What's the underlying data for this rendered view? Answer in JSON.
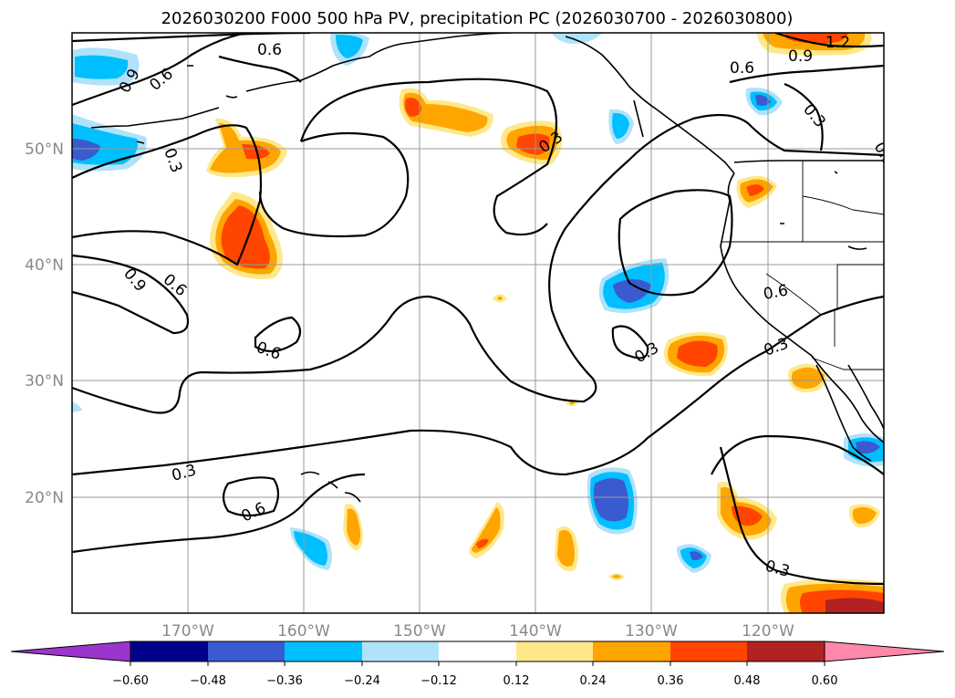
{
  "title": "2026030200 F000 500 hPa PV, precipitation PC (2026030700 - 2026030800)",
  "lat_labels": [
    "50°N",
    "40°N",
    "30°N",
    "20°N"
  ],
  "lon_labels": [
    "170°W",
    "160°W",
    "150°W",
    "140°W",
    "130°W",
    "120°W"
  ],
  "contour_labels": [
    "0.6",
    "0.9",
    "0.6",
    "0.3",
    "0.9",
    "0.6",
    "0.6",
    "0.3",
    "0.6",
    "0.3",
    "0.3",
    "0.6",
    "0.3",
    "0.3",
    "0.9",
    "1.2",
    "0.6",
    "0.3",
    "0.3"
  ],
  "colorbar": {
    "ticks": [
      "−0.60",
      "−0.48",
      "−0.36",
      "−0.24",
      "−0.12",
      "0.12",
      "0.24",
      "0.36",
      "0.48",
      "0.60"
    ],
    "colors": [
      "#9b35cc",
      "#00008b",
      "#3a5bcf",
      "#00bfff",
      "#b0e2fa",
      "#ffffff",
      "#ffe88a",
      "#ffa500",
      "#ff4500",
      "#b22222",
      "#ff88aa"
    ]
  },
  "palette": {
    "neg_light": "#b0e2fa",
    "neg_mid": "#00bfff",
    "neg_dark": "#3a5bcf",
    "pos_light": "#ffe88a",
    "pos_mid": "#ffa500",
    "pos_dark": "#ff4500",
    "pos_max": "#b22222"
  }
}
